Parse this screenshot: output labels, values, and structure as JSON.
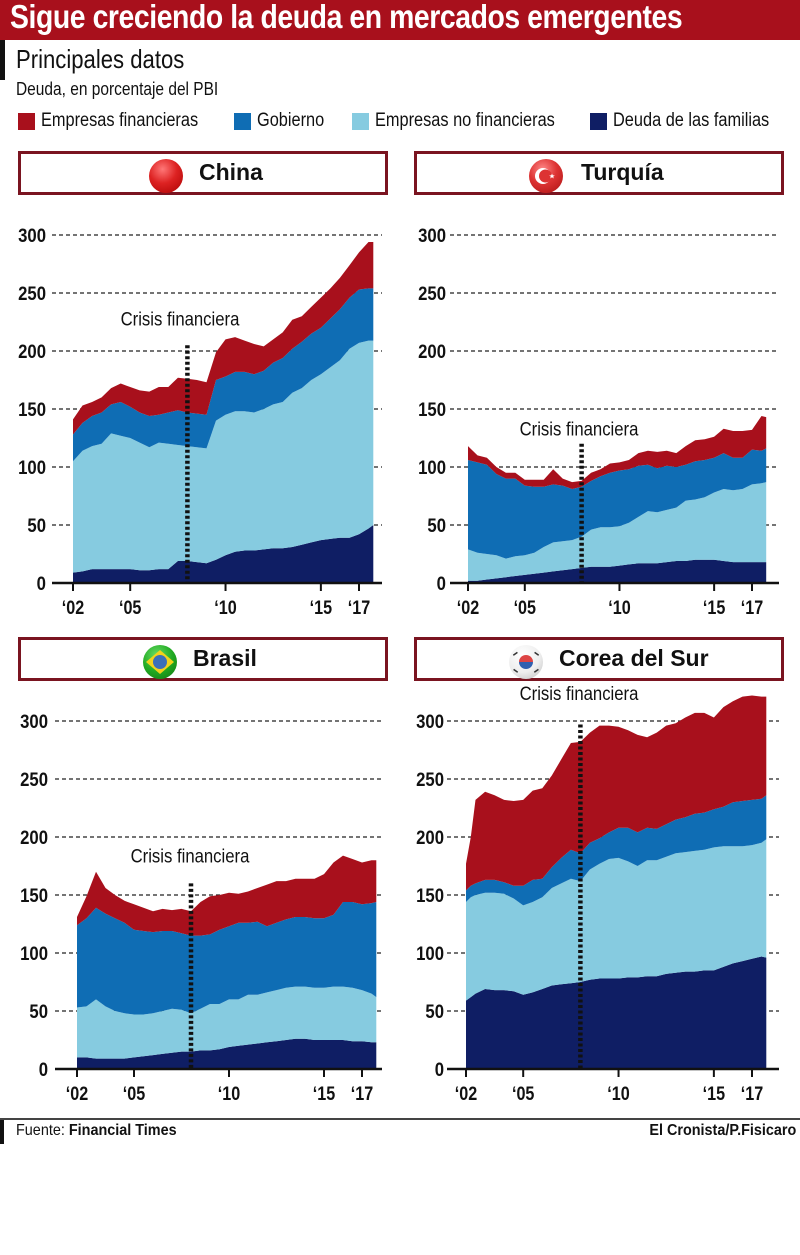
{
  "header": {
    "title": "Sigue creciendo la deuda en mercados emergentes",
    "subtitle": "Principales datos",
    "unit_note": "Deuda, en porcentaje del PBI"
  },
  "legend": [
    {
      "label": "Empresas financieras",
      "color": "#a8101c"
    },
    {
      "label": "Gobierno",
      "color": "#0f6db4"
    },
    {
      "label": "Empresas no financieras",
      "color": "#86cbe0"
    },
    {
      "label": "Deuda de las familias",
      "color": "#0f1e64"
    }
  ],
  "footer": {
    "source_prefix": "Fuente:",
    "source_name": "Financial Times",
    "credit": "El Cronista/P.Fisicaro"
  },
  "chart_data": [
    {
      "type": "area",
      "stacked": true,
      "title": "China",
      "flag": "china-flag",
      "ylabel": "Deuda, en porcentaje del PBI",
      "ylim": [
        0,
        300
      ],
      "yticks": [
        0,
        50,
        100,
        150,
        200,
        250,
        300
      ],
      "xticks": [
        {
          "v": 2002,
          "label": "‘02"
        },
        {
          "v": 2005,
          "label": "‘05"
        },
        {
          "v": 2010,
          "label": "‘10"
        },
        {
          "v": 2015,
          "label": "‘15"
        },
        {
          "v": 2017,
          "label": "‘17"
        }
      ],
      "annotation": {
        "text": "Crisis financiera",
        "x": 2008.0
      },
      "grid": true,
      "x": [
        2002.0,
        2002.5,
        2003.0,
        2003.5,
        2004.0,
        2004.5,
        2005.0,
        2005.5,
        2006.0,
        2006.5,
        2007.0,
        2007.5,
        2008.0,
        2008.5,
        2009.0,
        2009.5,
        2010.0,
        2010.5,
        2011.0,
        2011.5,
        2012.0,
        2012.5,
        2013.0,
        2013.5,
        2014.0,
        2014.5,
        2015.0,
        2015.5,
        2016.0,
        2016.5,
        2017.0,
        2017.5,
        2017.75
      ],
      "series": [
        {
          "name": "Deuda de las familias",
          "values": [
            9,
            10,
            12,
            12,
            12,
            12,
            12,
            11,
            11,
            12,
            12,
            19,
            19,
            18,
            17,
            20,
            24,
            27,
            28,
            28,
            29,
            30,
            30,
            31,
            33,
            35,
            37,
            38,
            39,
            39,
            42,
            47,
            50
          ]
        },
        {
          "name": "Empresas no financieras",
          "values": [
            96,
            104,
            106,
            108,
            117,
            115,
            113,
            110,
            106,
            109,
            108,
            100,
            99,
            99,
            99,
            120,
            121,
            121,
            120,
            119,
            121,
            124,
            126,
            133,
            135,
            140,
            143,
            148,
            153,
            163,
            165,
            162,
            159
          ]
        },
        {
          "name": "Gobierno",
          "values": [
            23,
            24,
            26,
            27,
            25,
            29,
            27,
            26,
            27,
            24,
            27,
            30,
            29,
            29,
            29,
            35,
            33,
            34,
            34,
            33,
            33,
            36,
            38,
            38,
            40,
            40,
            40,
            42,
            44,
            44,
            46,
            45,
            45
          ]
        },
        {
          "name": "Empresas financieras",
          "values": [
            13,
            15,
            12,
            13,
            14,
            16,
            17,
            19,
            21,
            24,
            22,
            28,
            29,
            29,
            28,
            24,
            32,
            30,
            27,
            26,
            21,
            20,
            22,
            25,
            22,
            23,
            26,
            26,
            27,
            28,
            32,
            40,
            40
          ]
        }
      ]
    },
    {
      "type": "area",
      "stacked": true,
      "title": "Turquía",
      "flag": "turkey-flag",
      "ylabel": "Deuda, en porcentaje del PBI",
      "ylim": [
        0,
        300
      ],
      "yticks": [
        0,
        50,
        100,
        150,
        200,
        250,
        300
      ],
      "xticks": [
        {
          "v": 2002,
          "label": "‘02"
        },
        {
          "v": 2005,
          "label": "‘05"
        },
        {
          "v": 2010,
          "label": "‘10"
        },
        {
          "v": 2015,
          "label": "‘15"
        },
        {
          "v": 2017,
          "label": "‘17"
        }
      ],
      "annotation": {
        "text": "Crisis financiera",
        "x": 2008.0
      },
      "grid": true,
      "x": [
        2002.0,
        2002.5,
        2003.0,
        2003.5,
        2004.0,
        2004.5,
        2005.0,
        2005.5,
        2006.0,
        2006.5,
        2007.0,
        2007.5,
        2008.0,
        2008.5,
        2009.0,
        2009.5,
        2010.0,
        2010.5,
        2011.0,
        2011.5,
        2012.0,
        2012.5,
        2013.0,
        2013.5,
        2014.0,
        2014.5,
        2015.0,
        2015.5,
        2016.0,
        2016.5,
        2017.0,
        2017.5,
        2017.75
      ],
      "series": [
        {
          "name": "Deuda de las familias",
          "values": [
            2,
            2,
            3,
            4,
            5,
            6,
            7,
            8,
            9,
            10,
            11,
            12,
            13,
            14,
            14,
            14,
            15,
            16,
            17,
            17,
            17,
            18,
            19,
            19,
            20,
            20,
            20,
            19,
            18,
            18,
            18,
            18,
            18
          ]
        },
        {
          "name": "Empresas no financieras",
          "values": [
            27,
            24,
            22,
            20,
            16,
            17,
            17,
            18,
            22,
            25,
            25,
            25,
            27,
            32,
            34,
            34,
            34,
            36,
            40,
            45,
            44,
            45,
            46,
            52,
            52,
            54,
            58,
            62,
            62,
            63,
            67,
            68,
            69
          ]
        },
        {
          "name": "Gobierno",
          "values": [
            77,
            78,
            77,
            70,
            69,
            67,
            60,
            57,
            52,
            50,
            48,
            44,
            43,
            42,
            44,
            47,
            48,
            46,
            44,
            40,
            38,
            38,
            35,
            31,
            33,
            32,
            30,
            31,
            28,
            27,
            30,
            28,
            29
          ]
        },
        {
          "name": "Empresas financieras",
          "values": [
            12,
            6,
            6,
            6,
            5,
            5,
            5,
            6,
            6,
            13,
            6,
            6,
            5,
            7,
            6,
            8,
            7,
            8,
            11,
            12,
            14,
            13,
            12,
            16,
            18,
            18,
            18,
            21,
            23,
            23,
            17,
            30,
            27
          ]
        }
      ]
    },
    {
      "type": "area",
      "stacked": true,
      "title": "Brasil",
      "flag": "brazil-flag",
      "ylabel": "Deuda, en porcentaje del PBI",
      "ylim": [
        0,
        300
      ],
      "yticks": [
        0,
        50,
        100,
        150,
        200,
        250,
        300
      ],
      "xticks": [
        {
          "v": 2002,
          "label": "‘02"
        },
        {
          "v": 2005,
          "label": "‘05"
        },
        {
          "v": 2010,
          "label": "‘10"
        },
        {
          "v": 2015,
          "label": "‘15"
        },
        {
          "v": 2017,
          "label": "‘17"
        }
      ],
      "annotation": {
        "text": "Crisis financiera",
        "x": 2008.0
      },
      "grid": true,
      "x": [
        2002.0,
        2002.5,
        2003.0,
        2003.5,
        2004.0,
        2004.5,
        2005.0,
        2005.5,
        2006.0,
        2006.5,
        2007.0,
        2007.5,
        2008.0,
        2008.5,
        2009.0,
        2009.5,
        2010.0,
        2010.5,
        2011.0,
        2011.5,
        2012.0,
        2012.5,
        2013.0,
        2013.5,
        2014.0,
        2014.5,
        2015.0,
        2015.5,
        2016.0,
        2016.5,
        2017.0,
        2017.5,
        2017.75
      ],
      "series": [
        {
          "name": "Deuda de las familias",
          "values": [
            10,
            10,
            9,
            9,
            9,
            9,
            10,
            11,
            12,
            13,
            14,
            15,
            15,
            16,
            16,
            17,
            19,
            20,
            21,
            22,
            23,
            24,
            25,
            26,
            26,
            25,
            25,
            25,
            25,
            24,
            24,
            23,
            23
          ]
        },
        {
          "name": "Empresas no financieras",
          "values": [
            43,
            44,
            51,
            45,
            41,
            39,
            37,
            36,
            36,
            37,
            38,
            36,
            33,
            36,
            40,
            39,
            41,
            40,
            43,
            42,
            43,
            44,
            45,
            45,
            45,
            45,
            45,
            46,
            46,
            46,
            44,
            42,
            39
          ]
        },
        {
          "name": "Gobierno",
          "values": [
            71,
            76,
            79,
            80,
            80,
            78,
            73,
            72,
            70,
            69,
            67,
            66,
            67,
            63,
            60,
            64,
            63,
            66,
            62,
            63,
            57,
            58,
            59,
            60,
            60,
            60,
            60,
            62,
            73,
            74,
            74,
            78,
            82
          ]
        },
        {
          "name": "Empresas financieras",
          "values": [
            7,
            19,
            31,
            22,
            20,
            19,
            22,
            20,
            18,
            19,
            18,
            21,
            21,
            29,
            33,
            30,
            29,
            25,
            27,
            29,
            36,
            36,
            33,
            33,
            33,
            34,
            38,
            45,
            40,
            37,
            36,
            37,
            36
          ]
        }
      ]
    },
    {
      "type": "area",
      "stacked": true,
      "title": "Corea del Sur",
      "flag": "south-korea-flag",
      "ylabel": "Deuda, en porcentaje del PBI",
      "ylim": [
        0,
        300
      ],
      "yticks": [
        0,
        50,
        100,
        150,
        200,
        250,
        300
      ],
      "xticks": [
        {
          "v": 2002,
          "label": "‘02"
        },
        {
          "v": 2005,
          "label": "‘05"
        },
        {
          "v": 2010,
          "label": "‘10"
        },
        {
          "v": 2015,
          "label": "‘15"
        },
        {
          "v": 2017,
          "label": "‘17"
        }
      ],
      "annotation": {
        "text": "Crisis financiera",
        "x": 2008.0
      },
      "grid": true,
      "x": [
        2002.0,
        2002.25,
        2002.5,
        2003.0,
        2003.5,
        2004.0,
        2004.5,
        2005.0,
        2005.5,
        2006.0,
        2006.5,
        2007.0,
        2007.5,
        2008.0,
        2008.5,
        2009.0,
        2009.5,
        2010.0,
        2010.5,
        2011.0,
        2011.5,
        2012.0,
        2012.5,
        2013.0,
        2013.5,
        2014.0,
        2014.5,
        2015.0,
        2015.5,
        2016.0,
        2016.5,
        2017.0,
        2017.5,
        2017.75
      ],
      "series": [
        {
          "name": "Deuda de las familias",
          "values": [
            59,
            62,
            65,
            69,
            68,
            68,
            67,
            64,
            66,
            69,
            72,
            73,
            74,
            75,
            77,
            78,
            78,
            78,
            79,
            79,
            80,
            80,
            82,
            83,
            84,
            84,
            85,
            85,
            88,
            91,
            93,
            95,
            97,
            96
          ]
        },
        {
          "name": "Empresas no financieras",
          "values": [
            85,
            86,
            85,
            83,
            84,
            83,
            80,
            77,
            78,
            79,
            84,
            87,
            90,
            87,
            95,
            99,
            103,
            104,
            100,
            96,
            100,
            100,
            101,
            103,
            103,
            104,
            104,
            106,
            104,
            101,
            99,
            98,
            98,
            102
          ]
        },
        {
          "name": "Gobierno",
          "values": [
            10,
            10,
            10,
            11,
            11,
            10,
            11,
            17,
            19,
            16,
            18,
            22,
            25,
            24,
            23,
            22,
            23,
            26,
            29,
            29,
            28,
            27,
            28,
            29,
            30,
            32,
            32,
            33,
            34,
            38,
            39,
            39,
            38,
            38
          ]
        },
        {
          "name": "Empresas financieras",
          "values": [
            23,
            42,
            72,
            76,
            73,
            71,
            73,
            74,
            77,
            78,
            79,
            85,
            92,
            96,
            95,
            97,
            92,
            87,
            84,
            84,
            78,
            83,
            85,
            83,
            86,
            87,
            86,
            79,
            86,
            87,
            90,
            90,
            88,
            85
          ]
        }
      ]
    }
  ]
}
